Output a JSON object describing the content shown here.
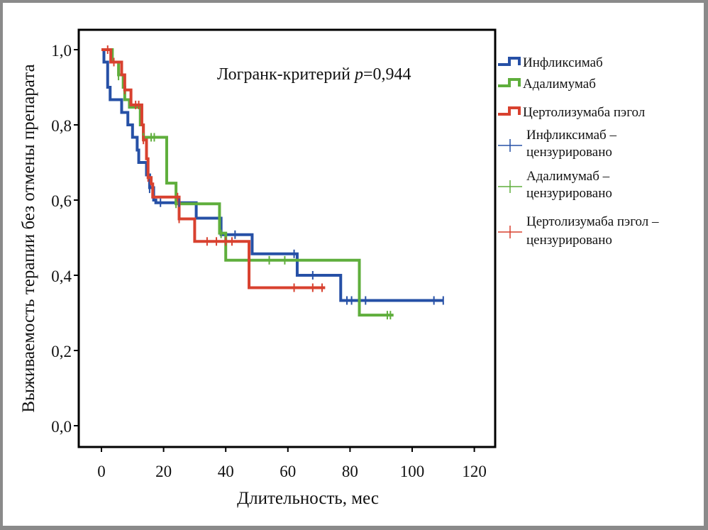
{
  "chart_data": {
    "type": "line",
    "subtype": "kaplan-meier",
    "title": "",
    "xlabel": "Длительность, мес",
    "ylabel": "Выживаемость терапии без отмены препарата",
    "xlim": [
      -3,
      126
    ],
    "ylim": [
      -0.06,
      1.07
    ],
    "xticks": [
      0,
      20,
      40,
      60,
      80,
      100,
      120
    ],
    "xtick_labels": [
      "0",
      "20",
      "40",
      "60",
      "80",
      "100",
      "120"
    ],
    "yticks": [
      0.0,
      0.2,
      0.4,
      0.6,
      0.8,
      1.0
    ],
    "ytick_labels": [
      "0,0",
      "0,2",
      "0,4",
      "0,6",
      "0,8",
      "1,0"
    ],
    "grid": false,
    "annotation": {
      "prefix": "Логранк-критерий ",
      "p_label": "p",
      "value": "=0,944"
    },
    "legend_position": "right",
    "legend": [
      {
        "label": "Инфликсимаб",
        "kind": "line",
        "color": "#2650a6"
      },
      {
        "label": "Адалимумаб",
        "kind": "line",
        "color": "#5fae3c"
      },
      {
        "label": "Цертолизумаба пэгол",
        "kind": "line",
        "color": "#d8412f"
      },
      {
        "label": [
          "Инфликсимаб –",
          "цензурировано"
        ],
        "kind": "censor",
        "color": "#2650a6"
      },
      {
        "label": [
          "Адалимумаб –",
          "цензурировано"
        ],
        "kind": "censor",
        "color": "#5fae3c"
      },
      {
        "label": [
          "Цертолизумаба пэгол –",
          "цензурировано"
        ],
        "kind": "censor",
        "color": "#d8412f"
      }
    ],
    "series": [
      {
        "name": "Инфликсимаб",
        "color": "#2650a6",
        "steps": [
          [
            0,
            1.0
          ],
          [
            0.8,
            0.967
          ],
          [
            2.0,
            0.9
          ],
          [
            2.8,
            0.867
          ],
          [
            6.5,
            0.833
          ],
          [
            8.5,
            0.8
          ],
          [
            10,
            0.767
          ],
          [
            11.5,
            0.733
          ],
          [
            12,
            0.7
          ],
          [
            14.5,
            0.667
          ],
          [
            15.5,
            0.633
          ],
          [
            16.8,
            0.6
          ],
          [
            17.5,
            0.593
          ],
          [
            30.5,
            0.552
          ],
          [
            38.5,
            0.508
          ],
          [
            48.5,
            0.457
          ],
          [
            63,
            0.4
          ],
          [
            77,
            0.333
          ],
          [
            110,
            0.333
          ]
        ],
        "censored": [
          [
            15.5,
            0.63
          ],
          [
            19,
            0.593
          ],
          [
            25,
            0.593
          ],
          [
            43,
            0.508
          ],
          [
            62,
            0.457
          ],
          [
            68,
            0.4
          ],
          [
            79,
            0.333
          ],
          [
            80.5,
            0.333
          ],
          [
            85,
            0.333
          ],
          [
            107,
            0.333
          ],
          [
            110,
            0.333
          ]
        ]
      },
      {
        "name": "Адалимумаб",
        "color": "#5fae3c",
        "steps": [
          [
            0,
            1.0
          ],
          [
            3.5,
            0.967
          ],
          [
            5.5,
            0.933
          ],
          [
            7,
            0.9
          ],
          [
            7.5,
            0.867
          ],
          [
            9,
            0.847
          ],
          [
            12.5,
            0.8
          ],
          [
            13.5,
            0.767
          ],
          [
            21,
            0.645
          ],
          [
            24,
            0.59
          ],
          [
            38,
            0.512
          ],
          [
            40,
            0.44
          ],
          [
            83,
            0.294
          ],
          [
            94,
            0.294
          ]
        ],
        "censored": [
          [
            5.5,
            0.93
          ],
          [
            13.5,
            0.767
          ],
          [
            16,
            0.767
          ],
          [
            17,
            0.767
          ],
          [
            24,
            0.59
          ],
          [
            38.5,
            0.51
          ],
          [
            54,
            0.44
          ],
          [
            59,
            0.44
          ],
          [
            92,
            0.294
          ],
          [
            93,
            0.294
          ]
        ]
      },
      {
        "name": "Цертолизумаба пэгол",
        "color": "#d8412f",
        "steps": [
          [
            0,
            1.0
          ],
          [
            3.0,
            0.967
          ],
          [
            6.5,
            0.933
          ],
          [
            7.5,
            0.893
          ],
          [
            9.5,
            0.853
          ],
          [
            13,
            0.8
          ],
          [
            13.5,
            0.76
          ],
          [
            14.5,
            0.71
          ],
          [
            15,
            0.66
          ],
          [
            16,
            0.643
          ],
          [
            16.5,
            0.608
          ],
          [
            25,
            0.55
          ],
          [
            30,
            0.49
          ],
          [
            47.5,
            0.367
          ],
          [
            72,
            0.367
          ]
        ],
        "censored": [
          [
            2,
            1.0
          ],
          [
            4,
            0.967
          ],
          [
            7.5,
            0.893
          ],
          [
            11,
            0.853
          ],
          [
            12,
            0.853
          ],
          [
            13.5,
            0.76
          ],
          [
            15,
            0.66
          ],
          [
            24.5,
            0.608
          ],
          [
            25,
            0.55
          ],
          [
            34,
            0.49
          ],
          [
            37,
            0.49
          ],
          [
            40,
            0.49
          ],
          [
            42,
            0.49
          ],
          [
            62,
            0.367
          ],
          [
            68,
            0.367
          ],
          [
            71,
            0.367
          ]
        ]
      }
    ]
  }
}
